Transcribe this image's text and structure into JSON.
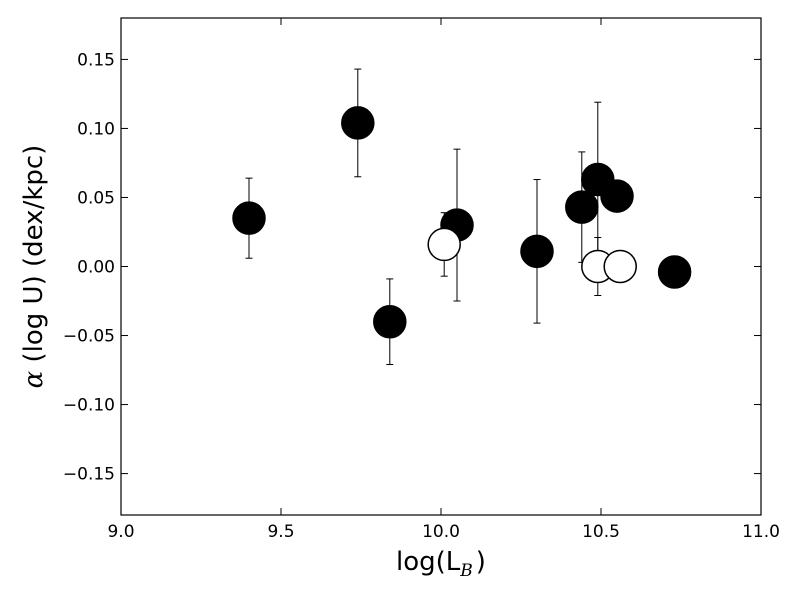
{
  "chart_data": {
    "type": "scatter",
    "title": "",
    "xlabel": {
      "main": "log(L",
      "sub": "B",
      "close": ")"
    },
    "ylabel": {
      "symbol": "α",
      "text": " (log U) (dex/kpc)"
    },
    "xlim": [
      9.0,
      11.0
    ],
    "ylim": [
      -0.18,
      0.18
    ],
    "xticks": [
      9.0,
      9.5,
      10.0,
      10.5,
      11.0
    ],
    "xtick_labels": [
      "9.0",
      "9.5",
      "10.0",
      "10.5",
      "11.0"
    ],
    "yticks": [
      -0.15,
      -0.1,
      -0.05,
      0.0,
      0.05,
      0.1,
      0.15
    ],
    "ytick_labels": [
      "−0.15",
      "−0.10",
      "−0.05",
      "0.00",
      "0.05",
      "0.10",
      "0.15"
    ],
    "grid": false,
    "colors": {
      "filled": "#000000",
      "open": "#ffffff",
      "edge": "#000000"
    },
    "series": [
      {
        "marker": "filled-circle",
        "points": [
          {
            "x": 9.4,
            "y": 0.035,
            "err": 0.029
          },
          {
            "x": 9.74,
            "y": 0.104,
            "err": 0.039
          },
          {
            "x": 9.84,
            "y": -0.04,
            "err": 0.031
          },
          {
            "x": 10.05,
            "y": 0.03,
            "err": 0.055
          },
          {
            "x": 10.3,
            "y": 0.011,
            "err": 0.052
          },
          {
            "x": 10.44,
            "y": 0.043,
            "err": 0.04
          },
          {
            "x": 10.49,
            "y": 0.063,
            "err": 0.056
          },
          {
            "x": 10.55,
            "y": 0.051,
            "err": 0.0
          },
          {
            "x": 10.73,
            "y": -0.004,
            "err": 0.0
          }
        ]
      },
      {
        "marker": "open-circle",
        "points": [
          {
            "x": 10.01,
            "y": 0.016,
            "err": 0.023
          },
          {
            "x": 10.49,
            "y": 0.0,
            "err": 0.021
          },
          {
            "x": 10.56,
            "y": 0.0,
            "err": 0.0
          }
        ]
      }
    ]
  }
}
